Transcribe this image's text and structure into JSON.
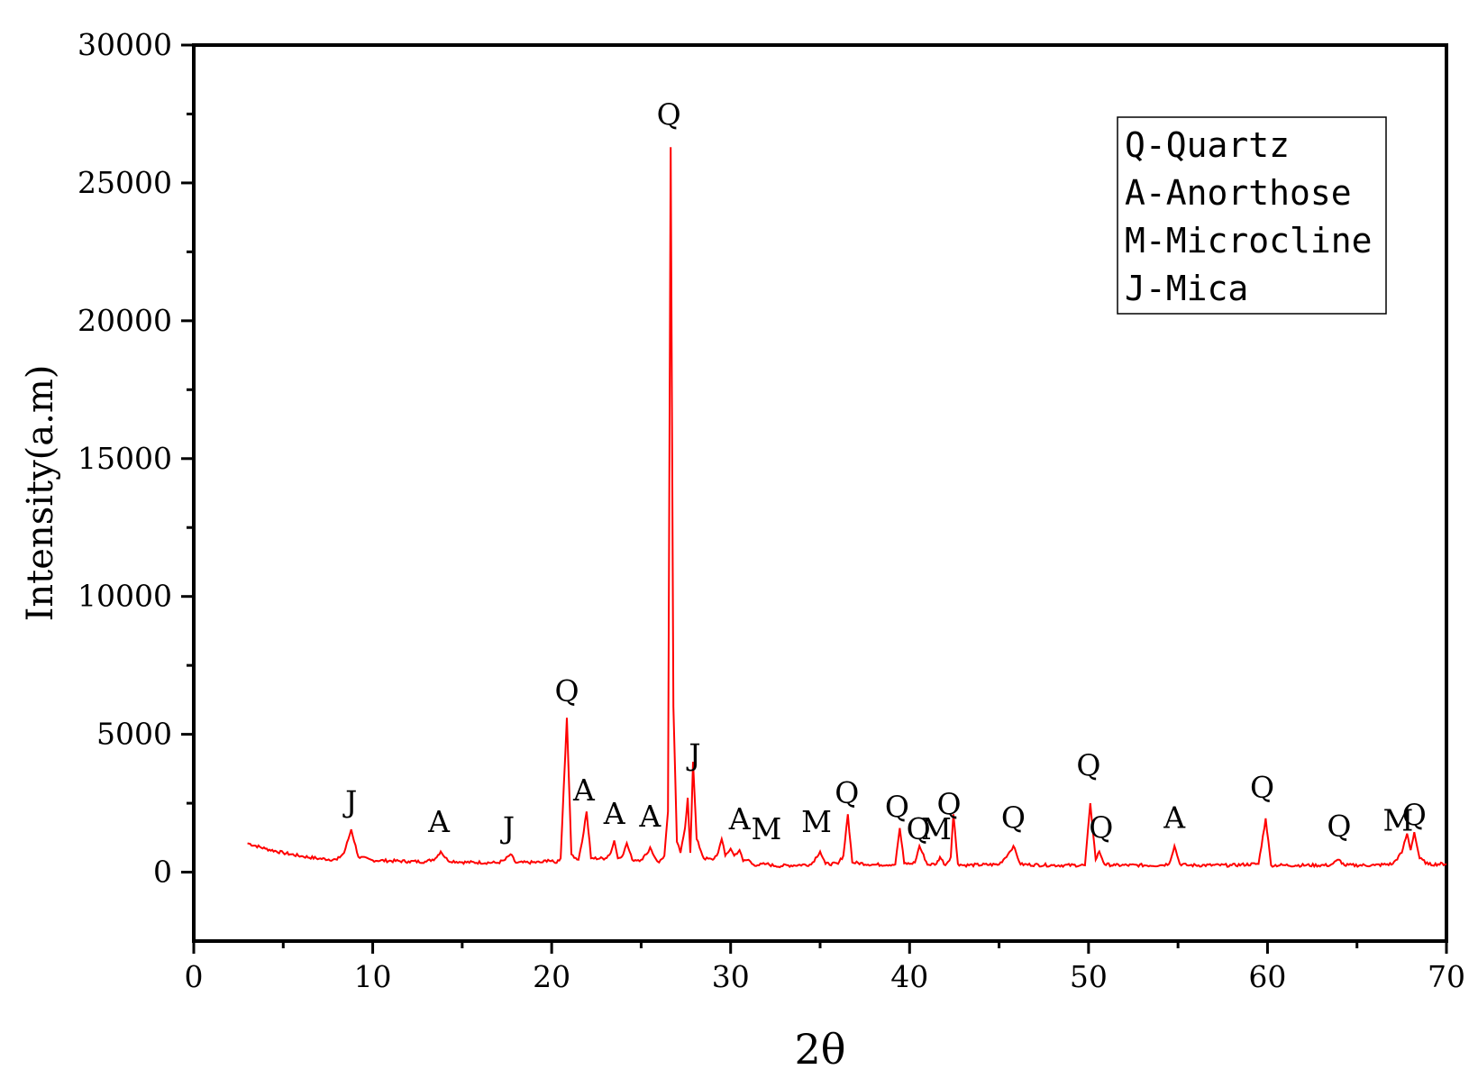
{
  "chart_data": {
    "type": "line",
    "title": "",
    "xlabel": "2θ",
    "ylabel": "Intensity(a.m)",
    "xlim": [
      0,
      70
    ],
    "ylim": [
      -2500,
      30000
    ],
    "x_ticks": [
      "0",
      "10",
      "20",
      "30",
      "40",
      "50",
      "60",
      "70"
    ],
    "y_ticks": [
      "0",
      "5000",
      "10000",
      "15000",
      "20000",
      "25000",
      "30000"
    ],
    "grid": false,
    "line_color": "#ff0000",
    "series": [
      {
        "x": [
          3,
          4,
          5,
          6,
          7,
          8,
          8.4,
          8.8,
          9.2,
          10,
          12,
          13,
          13.5,
          13.8,
          14.2,
          15,
          17,
          17.4,
          17.7,
          18,
          19.5,
          19.8,
          20.2,
          20.5,
          20.85,
          21.1,
          21.5,
          21.7,
          21.95,
          22.2,
          23,
          23.3,
          23.5,
          23.7,
          24,
          24.2,
          24.5,
          25,
          25.3,
          25.5,
          25.8,
          26,
          26.3,
          26.5,
          26.65,
          26.8,
          27,
          27.2,
          27.45,
          27.6,
          27.75,
          27.9,
          28.1,
          28.5,
          29,
          29.3,
          29.5,
          29.7,
          30,
          30.2,
          30.5,
          30.7,
          31,
          31.2,
          31.5,
          32,
          32.5,
          34.5,
          35,
          35.3,
          36,
          36.3,
          36.55,
          36.8,
          38,
          39.2,
          39.45,
          39.7,
          40,
          40.3,
          40.55,
          41,
          41.5,
          41.7,
          42,
          42.3,
          42.45,
          42.7,
          43,
          45,
          45.5,
          45.8,
          46.2,
          48,
          49.8,
          50.1,
          50.4,
          50.6,
          50.9,
          51.5,
          54,
          54.5,
          54.8,
          55.1,
          55.5,
          58,
          59.5,
          59.9,
          60.2,
          61,
          63.5,
          64,
          64.3,
          66,
          67,
          67.5,
          67.8,
          68,
          68.2,
          68.5,
          69,
          70
        ],
        "y": [
          1050,
          850,
          700,
          580,
          490,
          450,
          700,
          1550,
          550,
          430,
          390,
          380,
          500,
          750,
          420,
          360,
          340,
          450,
          650,
          340,
          360,
          450,
          330,
          500,
          5600,
          650,
          450,
          1100,
          2200,
          500,
          500,
          700,
          1150,
          500,
          650,
          1050,
          450,
          450,
          650,
          900,
          500,
          350,
          600,
          2200,
          26300,
          6000,
          1100,
          700,
          1600,
          2700,
          700,
          4000,
          1200,
          500,
          450,
          700,
          1200,
          600,
          850,
          600,
          800,
          400,
          450,
          300,
          250,
          300,
          220,
          280,
          750,
          300,
          300,
          600,
          2100,
          350,
          270,
          280,
          1600,
          320,
          300,
          350,
          950,
          270,
          300,
          550,
          250,
          550,
          2100,
          300,
          250,
          280,
          650,
          950,
          280,
          250,
          250,
          2500,
          450,
          750,
          280,
          250,
          250,
          300,
          950,
          300,
          250,
          250,
          300,
          1950,
          250,
          250,
          250,
          450,
          250,
          250,
          300,
          700,
          1400,
          800,
          1450,
          500,
          280,
          300
        ]
      }
    ],
    "peak_labels": [
      {
        "text": "J",
        "x": 8.8,
        "y": 2200
      },
      {
        "text": "A",
        "x": 13.7,
        "y": 1450
      },
      {
        "text": "J",
        "x": 17.6,
        "y": 1250
      },
      {
        "text": "Q",
        "x": 20.85,
        "y": 6200
      },
      {
        "text": "A",
        "x": 21.8,
        "y": 2600
      },
      {
        "text": "A",
        "x": 23.5,
        "y": 1750
      },
      {
        "text": "A",
        "x": 25.5,
        "y": 1650
      },
      {
        "text": "Q",
        "x": 26.55,
        "y": 27100
      },
      {
        "text": "J",
        "x": 28.0,
        "y": 3900
      },
      {
        "text": "A",
        "x": 30.5,
        "y": 1550
      },
      {
        "text": "M",
        "x": 32.0,
        "y": 1200
      },
      {
        "text": "M",
        "x": 34.8,
        "y": 1450
      },
      {
        "text": "Q",
        "x": 36.5,
        "y": 2500
      },
      {
        "text": "Q",
        "x": 39.3,
        "y": 2000
      },
      {
        "text": "Q",
        "x": 40.5,
        "y": 1200
      },
      {
        "text": "M",
        "x": 41.5,
        "y": 1200
      },
      {
        "text": "Q",
        "x": 42.2,
        "y": 2100
      },
      {
        "text": "Q",
        "x": 45.8,
        "y": 1600
      },
      {
        "text": "Q",
        "x": 50.0,
        "y": 3500
      },
      {
        "text": "Q",
        "x": 50.7,
        "y": 1250
      },
      {
        "text": "A",
        "x": 54.8,
        "y": 1600
      },
      {
        "text": "Q",
        "x": 59.7,
        "y": 2700
      },
      {
        "text": "Q",
        "x": 64.0,
        "y": 1300
      },
      {
        "text": "M",
        "x": 67.3,
        "y": 1500
      },
      {
        "text": "Q",
        "x": 68.2,
        "y": 1700
      }
    ],
    "legend": {
      "position": "top-right",
      "entries": [
        "Q-Quartz",
        "A-Anorthose",
        "M-Microcline",
        "J-Mica"
      ]
    }
  }
}
